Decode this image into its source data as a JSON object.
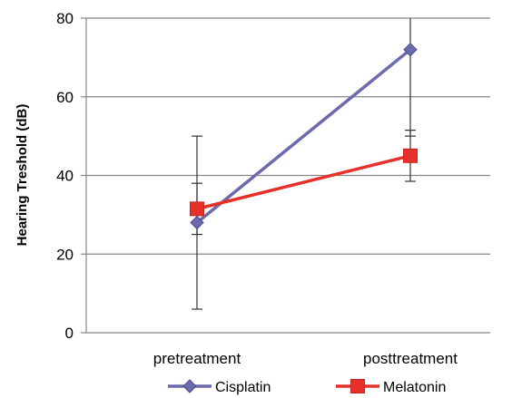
{
  "chart_data": {
    "type": "line",
    "title": "",
    "xlabel": "",
    "ylabel": "Hearing Treshold (dB)",
    "categories": [
      "pretreatment",
      "posttreatment"
    ],
    "ylim": [
      0,
      80
    ],
    "yticks": [
      0,
      20,
      40,
      60,
      80
    ],
    "grid": true,
    "legend_position": "bottom",
    "series": [
      {
        "name": "Cisplatin",
        "values": [
          28,
          72
        ],
        "error": [
          22,
          22
        ],
        "color": "#6a6aad",
        "marker": "diamond"
      },
      {
        "name": "Melatonin",
        "values": [
          31.5,
          45
        ],
        "error": [
          6.5,
          6.5
        ],
        "color": "#e8302a",
        "marker": "square"
      }
    ]
  }
}
